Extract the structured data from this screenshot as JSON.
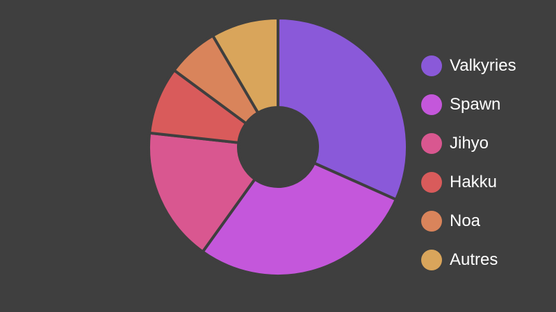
{
  "chart_data": {
    "type": "pie",
    "variant": "donut",
    "title": "",
    "legend_position": "right",
    "categories": [
      "Valkyries",
      "Spawn",
      "Jihyo",
      "Hakku",
      "Noa",
      "Autres"
    ],
    "values": [
      32,
      28.5,
      17,
      8.5,
      6.5,
      8.5
    ],
    "colors": [
      "#8a59d9",
      "#c457db",
      "#d95790",
      "#d95b5b",
      "#d9845b",
      "#d9a55b"
    ]
  },
  "style": {
    "background": "#3f3f3f",
    "separator_color": "#3f3f3f"
  }
}
